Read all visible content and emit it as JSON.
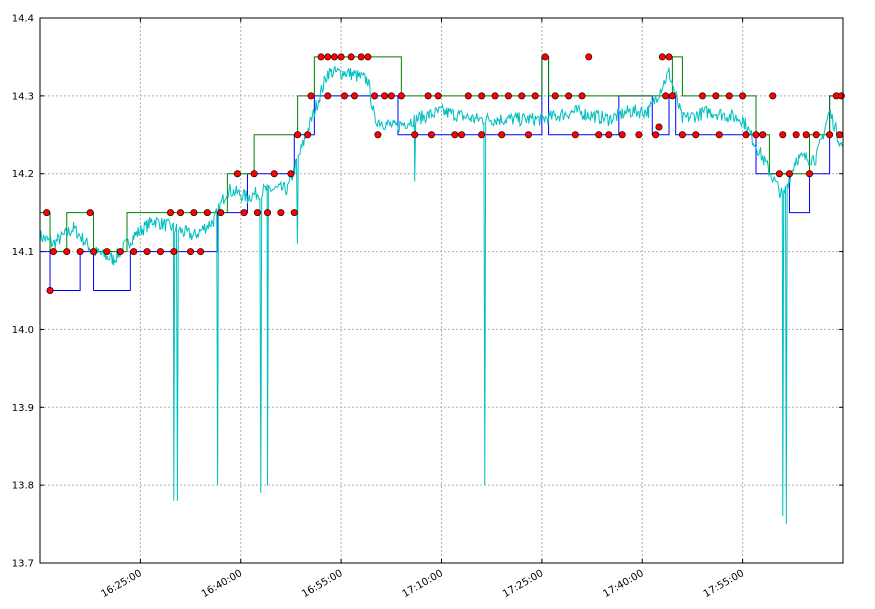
{
  "chart_data": {
    "type": "line",
    "title": "",
    "xlabel": "",
    "ylabel": "",
    "x_ticks": [
      "16:25:00",
      "16:40:00",
      "16:55:00",
      "17:10:00",
      "17:25:00",
      "17:40:00",
      "17:55:00"
    ],
    "y_ticks": [
      "14.4",
      "14.3",
      "14.2",
      "14.1",
      "14.0",
      "13.9",
      "13.8",
      "13.7"
    ],
    "ylim": [
      13.7,
      14.4
    ],
    "xlim": [
      "16:10:00",
      "18:10:00"
    ],
    "grid": true,
    "legend": "none",
    "series": [
      {
        "color": "#0000ff",
        "style": "step-line",
        "points": [
          [
            "16:10:00",
            14.1
          ],
          [
            "16:11:30",
            14.05
          ],
          [
            "16:16:00",
            14.1
          ],
          [
            "16:18:00",
            14.05
          ],
          [
            "16:23:30",
            14.1
          ],
          [
            "16:36:30",
            14.15
          ],
          [
            "16:41:00",
            14.2
          ],
          [
            "16:48:00",
            14.25
          ],
          [
            "16:51:00",
            14.3
          ],
          [
            "17:03:30",
            14.25
          ],
          [
            "17:05:30",
            14.25
          ],
          [
            "17:25:00",
            14.35
          ],
          [
            "17:26:00",
            14.25
          ],
          [
            "17:36:30",
            14.3
          ],
          [
            "17:41:30",
            14.25
          ],
          [
            "17:44:00",
            14.3
          ],
          [
            "17:45:00",
            14.25
          ],
          [
            "17:57:00",
            14.2
          ],
          [
            "18:02:00",
            14.15
          ],
          [
            "18:05:00",
            14.2
          ],
          [
            "18:08:00",
            14.3
          ],
          [
            "18:10:00",
            14.25
          ]
        ]
      },
      {
        "color": "#008000",
        "style": "step-line",
        "points": [
          [
            "16:10:00",
            14.15
          ],
          [
            "16:11:30",
            14.1
          ],
          [
            "16:14:00",
            14.15
          ],
          [
            "16:18:00",
            14.1
          ],
          [
            "16:23:00",
            14.15
          ],
          [
            "16:38:00",
            14.2
          ],
          [
            "16:42:00",
            14.25
          ],
          [
            "16:48:30",
            14.3
          ],
          [
            "16:51:00",
            14.35
          ],
          [
            "17:04:00",
            14.3
          ],
          [
            "17:23:00",
            14.3
          ],
          [
            "17:25:00",
            14.35
          ],
          [
            "17:26:00",
            14.3
          ],
          [
            "17:37:30",
            14.3
          ],
          [
            "17:44:30",
            14.35
          ],
          [
            "17:46:00",
            14.3
          ],
          [
            "17:57:00",
            14.25
          ],
          [
            "17:59:00",
            14.2
          ],
          [
            "18:05:00",
            14.25
          ],
          [
            "18:08:00",
            14.3
          ],
          [
            "18:10:00",
            14.3
          ]
        ]
      },
      {
        "color": "#00bfbf",
        "style": "noisy-line",
        "points": [
          [
            "16:10:00",
            14.12
          ],
          [
            "16:12:00",
            14.11
          ],
          [
            "16:15:00",
            14.13
          ],
          [
            "16:18:00",
            14.1
          ],
          [
            "16:21:00",
            14.09
          ],
          [
            "16:24:00",
            14.12
          ],
          [
            "16:27:00",
            14.14
          ],
          [
            "16:30:00",
            14.13
          ],
          [
            "16:33:00",
            14.12
          ],
          [
            "16:36:00",
            14.14
          ],
          [
            "16:38:00",
            14.18
          ],
          [
            "16:41:00",
            14.17
          ],
          [
            "16:44:00",
            14.18
          ],
          [
            "16:47:00",
            14.18
          ],
          [
            "16:49:00",
            14.23
          ],
          [
            "16:51:00",
            14.28
          ],
          [
            "16:53:00",
            14.33
          ],
          [
            "16:56:00",
            14.33
          ],
          [
            "16:59:00",
            14.32
          ],
          [
            "17:00:00",
            14.27
          ],
          [
            "17:03:00",
            14.26
          ],
          [
            "17:06:00",
            14.27
          ],
          [
            "17:10:00",
            14.28
          ],
          [
            "17:15:00",
            14.27
          ],
          [
            "17:20:00",
            14.27
          ],
          [
            "17:25:00",
            14.27
          ],
          [
            "17:30:00",
            14.28
          ],
          [
            "17:35:00",
            14.27
          ],
          [
            "17:38:00",
            14.28
          ],
          [
            "17:41:00",
            14.28
          ],
          [
            "17:44:00",
            14.33
          ],
          [
            "17:46:00",
            14.27
          ],
          [
            "17:50:00",
            14.28
          ],
          [
            "17:55:00",
            14.27
          ],
          [
            "17:58:00",
            14.22
          ],
          [
            "18:01:00",
            14.17
          ],
          [
            "18:03:00",
            14.22
          ],
          [
            "18:06:00",
            14.22
          ],
          [
            "18:08:00",
            14.28
          ],
          [
            "18:10:00",
            14.23
          ]
        ],
        "spikes": [
          [
            "16:30:00",
            13.78
          ],
          [
            "16:30:30",
            13.78
          ],
          [
            "16:36:30",
            13.8
          ],
          [
            "16:43:00",
            13.79
          ],
          [
            "16:44:00",
            13.8
          ],
          [
            "16:48:30",
            14.11
          ],
          [
            "17:06:00",
            14.19
          ],
          [
            "17:16:30",
            13.8
          ],
          [
            "17:36:00",
            14.11
          ],
          [
            "18:01:00",
            13.76
          ],
          [
            "18:01:30",
            13.75
          ]
        ]
      },
      {
        "color": "#ff0000",
        "style": "markers",
        "points": [
          [
            "16:11:00",
            14.15
          ],
          [
            "16:11:30",
            14.05
          ],
          [
            "16:17:30",
            14.15
          ],
          [
            "16:12:00",
            14.1
          ],
          [
            "16:14:00",
            14.1
          ],
          [
            "16:16:00",
            14.1
          ],
          [
            "16:18:00",
            14.1
          ],
          [
            "16:20:00",
            14.1
          ],
          [
            "16:22:00",
            14.1
          ],
          [
            "16:24:00",
            14.1
          ],
          [
            "16:26:00",
            14.1
          ],
          [
            "16:28:00",
            14.1
          ],
          [
            "16:29:30",
            14.15
          ],
          [
            "16:31:00",
            14.15
          ],
          [
            "16:33:00",
            14.15
          ],
          [
            "16:35:00",
            14.15
          ],
          [
            "16:37:00",
            14.15
          ],
          [
            "16:30:00",
            14.1
          ],
          [
            "16:32:30",
            14.1
          ],
          [
            "16:34:00",
            14.1
          ],
          [
            "16:39:30",
            14.2
          ],
          [
            "16:40:30",
            14.15
          ],
          [
            "16:42:00",
            14.2
          ],
          [
            "16:42:30",
            14.15
          ],
          [
            "16:44:00",
            14.15
          ],
          [
            "16:45:00",
            14.2
          ],
          [
            "16:46:00",
            14.15
          ],
          [
            "16:47:30",
            14.2
          ],
          [
            "16:48:00",
            14.15
          ],
          [
            "16:48:30",
            14.25
          ],
          [
            "16:50:00",
            14.25
          ],
          [
            "16:50:30",
            14.3
          ],
          [
            "16:52:00",
            14.35
          ],
          [
            "16:53:00",
            14.35
          ],
          [
            "16:54:00",
            14.35
          ],
          [
            "16:55:00",
            14.35
          ],
          [
            "16:56:30",
            14.35
          ],
          [
            "16:58:00",
            14.35
          ],
          [
            "16:59:00",
            14.35
          ],
          [
            "16:53:00",
            14.3
          ],
          [
            "16:55:30",
            14.3
          ],
          [
            "16:57:00",
            14.3
          ],
          [
            "17:00:00",
            14.3
          ],
          [
            "17:01:30",
            14.3
          ],
          [
            "17:02:30",
            14.3
          ],
          [
            "17:04:00",
            14.3
          ],
          [
            "17:00:30",
            14.25
          ],
          [
            "17:08:00",
            14.3
          ],
          [
            "17:09:30",
            14.3
          ],
          [
            "17:14:00",
            14.3
          ],
          [
            "17:16:00",
            14.3
          ],
          [
            "17:18:00",
            14.3
          ],
          [
            "17:20:00",
            14.3
          ],
          [
            "17:22:00",
            14.3
          ],
          [
            "17:24:00",
            14.3
          ],
          [
            "17:06:00",
            14.25
          ],
          [
            "17:08:30",
            14.25
          ],
          [
            "17:12:00",
            14.25
          ],
          [
            "17:13:00",
            14.25
          ],
          [
            "17:16:00",
            14.25
          ],
          [
            "17:19:00",
            14.25
          ],
          [
            "17:23:00",
            14.25
          ],
          [
            "17:25:30",
            14.35
          ],
          [
            "17:27:00",
            14.3
          ],
          [
            "17:29:00",
            14.3
          ],
          [
            "17:31:00",
            14.3
          ],
          [
            "17:32:00",
            14.35
          ],
          [
            "17:30:00",
            14.25
          ],
          [
            "17:33:30",
            14.25
          ],
          [
            "17:35:00",
            14.25
          ],
          [
            "17:37:00",
            14.25
          ],
          [
            "17:39:30",
            14.25
          ],
          [
            "17:42:00",
            14.25
          ],
          [
            "17:42:30",
            14.26
          ],
          [
            "17:43:00",
            14.35
          ],
          [
            "17:44:00",
            14.35
          ],
          [
            "17:43:30",
            14.3
          ],
          [
            "17:44:30",
            14.3
          ],
          [
            "17:46:00",
            14.25
          ],
          [
            "17:49:00",
            14.3
          ],
          [
            "17:51:00",
            14.3
          ],
          [
            "17:53:00",
            14.3
          ],
          [
            "17:55:00",
            14.3
          ],
          [
            "17:48:00",
            14.25
          ],
          [
            "17:51:30",
            14.25
          ],
          [
            "17:55:30",
            14.25
          ],
          [
            "17:57:00",
            14.25
          ],
          [
            "17:59:30",
            14.3
          ],
          [
            "18:01:00",
            14.25
          ],
          [
            "17:58:00",
            14.25
          ],
          [
            "18:00:30",
            14.2
          ],
          [
            "18:02:00",
            14.2
          ],
          [
            "18:03:00",
            14.25
          ],
          [
            "18:04:30",
            14.25
          ],
          [
            "18:06:00",
            14.25
          ],
          [
            "18:08:00",
            14.25
          ],
          [
            "18:09:30",
            14.25
          ],
          [
            "18:05:00",
            14.2
          ],
          [
            "18:09:00",
            14.3
          ],
          [
            "18:09:45",
            14.3
          ]
        ]
      }
    ]
  }
}
